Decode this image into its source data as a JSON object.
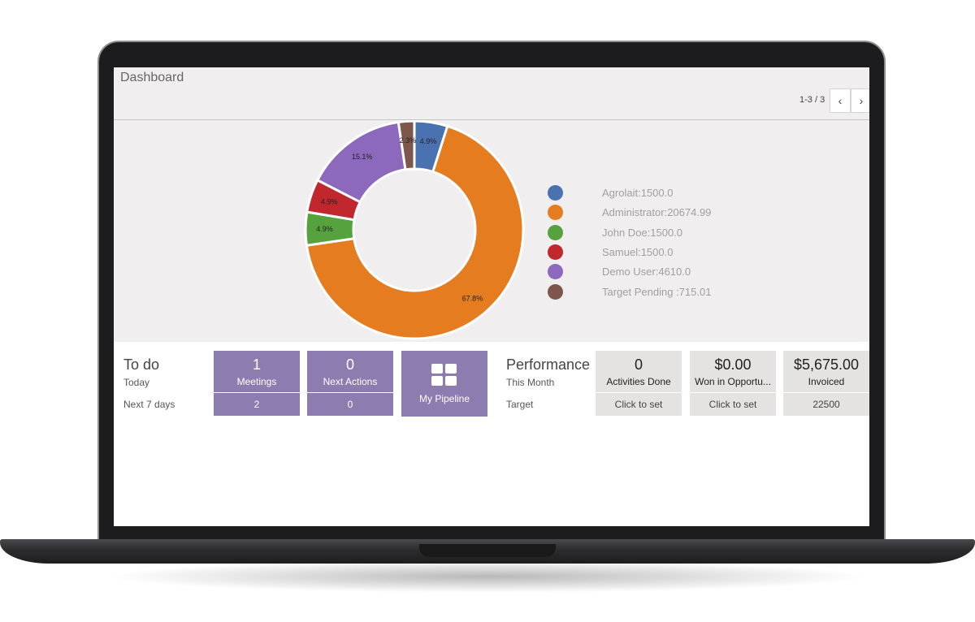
{
  "header": {
    "title": "Dashboard",
    "pager": "1-3 / 3",
    "prev_icon": "chevron-left-icon",
    "next_icon": "chevron-right-icon"
  },
  "chart_data": {
    "type": "pie",
    "donut": true,
    "slices": [
      {
        "label": "Agrolait:1500.0",
        "value": 1500.0,
        "percent": "4.9%",
        "color": "#4a72b0"
      },
      {
        "label": "Administrator:20674.99",
        "value": 20674.99,
        "percent": "67.8%",
        "color": "#e57c20"
      },
      {
        "label": "John Doe:1500.0",
        "value": 1500.0,
        "percent": "4.9%",
        "color": "#56a23f"
      },
      {
        "label": "Samuel:1500.0",
        "value": 1500.0,
        "percent": "4.9%",
        "color": "#c0282e"
      },
      {
        "label": "Demo User:4610.0",
        "value": 4610.0,
        "percent": "15.1%",
        "color": "#8c69bd"
      },
      {
        "label": "Target Pending :715.01",
        "value": 715.01,
        "percent": "2.3%",
        "color": "#7d564c"
      }
    ],
    "legend_position": "right"
  },
  "todo": {
    "title": "To do",
    "today_label": "Today",
    "next7_label": "Next 7 days",
    "meetings": {
      "count": "1",
      "label": "Meetings",
      "next7": "2"
    },
    "next_actions": {
      "count": "0",
      "label": "Next Actions",
      "next7": "0"
    },
    "pipeline": {
      "label": "My Pipeline",
      "icon": "grid-icon"
    }
  },
  "performance": {
    "title": "Performance",
    "month_label": "This Month",
    "target_label": "Target",
    "tiles": [
      {
        "value": "0",
        "label": "Activities Done",
        "target": "Click to set"
      },
      {
        "value": "$0.00",
        "label": "Won in Opportu...",
        "target": "Click to set"
      },
      {
        "value": "$5,675.00",
        "label": "Invoiced",
        "target": "22500"
      }
    ]
  }
}
